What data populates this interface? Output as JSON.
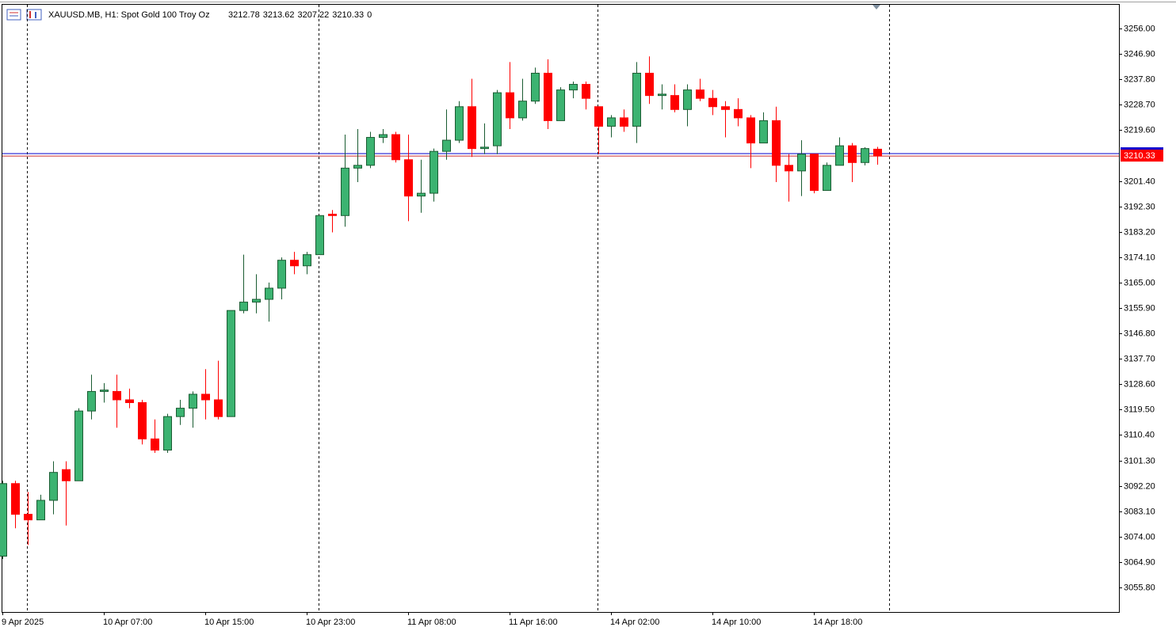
{
  "chart_data": {
    "type": "candlestick",
    "title": "XAUUSD.MB, H1:  Spot Gold 100 Troy Oz",
    "volume": 0,
    "categories": [
      "9 Apr 2025",
      null,
      null,
      null,
      null,
      null,
      null,
      null,
      "10 Apr 07:00",
      null,
      null,
      null,
      null,
      null,
      null,
      null,
      "10 Apr 15:00",
      null,
      null,
      null,
      null,
      null,
      null,
      null,
      "10 Apr 23:00",
      null,
      null,
      null,
      null,
      null,
      null,
      null,
      "11 Apr 08:00",
      null,
      null,
      null,
      null,
      null,
      null,
      null,
      "11 Apr 16:00",
      null,
      null,
      null,
      null,
      null,
      null,
      null,
      "14 Apr 02:00",
      null,
      null,
      null,
      null,
      null,
      null,
      null,
      "14 Apr 10:00",
      null,
      null,
      null,
      null,
      null,
      null,
      null,
      "14 Apr 18:00",
      null,
      null,
      null,
      null,
      null
    ],
    "open": [
      3067,
      3093,
      3082,
      3080,
      3087,
      3098,
      3094,
      3119,
      3126,
      3126,
      3123,
      3122,
      3109,
      3105,
      3117,
      3120,
      3125,
      3123,
      3117,
      3155,
      3158,
      3159,
      3163,
      3173,
      3171,
      3175,
      3189.5,
      3189,
      3206,
      3207,
      3217,
      3218,
      3209,
      3196,
      3197,
      3212,
      3216,
      3228,
      3213,
      3214,
      3233,
      3224,
      3230,
      3240,
      3223,
      3234,
      3236,
      3228,
      3221,
      3224,
      3221,
      3240,
      3232,
      3232,
      3227,
      3234,
      3231,
      3228,
      3227,
      3224,
      3215,
      3223,
      3207,
      3205,
      3211,
      3198,
      3207,
      3214,
      3208,
      3212.78
    ],
    "high": [
      3094,
      3094,
      3090,
      3089,
      3101,
      3101,
      3120,
      3132,
      3129,
      3132,
      3127,
      3123,
      3116,
      3118,
      3123,
      3126,
      3134,
      3137,
      3155,
      3175,
      3168,
      3165,
      3174,
      3176,
      3176,
      3189,
      3191,
      3218,
      3220,
      3219,
      3220,
      3219,
      3218,
      3209,
      3213,
      3227,
      3230,
      3238,
      3222,
      3234,
      3244,
      3238,
      3242,
      3245,
      3235,
      3237,
      3237,
      3228,
      3225,
      3227,
      3244,
      3246,
      3236,
      3236,
      3236,
      3238,
      3234,
      3230,
      3231,
      3225,
      3226,
      3228,
      3211,
      3216,
      3211,
      3208,
      3217,
      3215,
      3213.5,
      3213.62
    ],
    "low": [
      3066,
      3077,
      3071,
      3080,
      3082,
      3078,
      3094,
      3116,
      3122,
      3113,
      3120,
      3107,
      3104,
      3104,
      3114,
      3113,
      3116,
      3116,
      3117,
      3154,
      3154,
      3151,
      3159,
      3168,
      3168,
      3176,
      3183,
      3185,
      3201,
      3206,
      3215,
      3208,
      3187,
      3190,
      3194,
      3209,
      3215,
      3210,
      3211,
      3211,
      3220,
      3223,
      3229,
      3220,
      3223,
      3231,
      3227,
      3211,
      3217,
      3219,
      3215,
      3229,
      3227,
      3226,
      3221,
      3230,
      3225,
      3217,
      3221,
      3206,
      3215,
      3201,
      3194,
      3196,
      3197,
      3198,
      3207,
      3201,
      3207,
      3207.22
    ],
    "close": [
      3093,
      3082,
      3080,
      3087,
      3097,
      3094,
      3119,
      3126,
      3126.5,
      3123,
      3122,
      3109,
      3105,
      3117,
      3120,
      3125,
      3123,
      3117,
      3155,
      3158,
      3159,
      3163,
      3173,
      3171,
      3175,
      3189,
      3189,
      3206,
      3207,
      3217,
      3218,
      3209,
      3196,
      3197,
      3212,
      3216,
      3228,
      3213,
      3213.5,
      3233,
      3224,
      3230,
      3240,
      3223,
      3234,
      3236,
      3231,
      3221,
      3224,
      3221,
      3240,
      3232,
      3232.5,
      3227,
      3234,
      3231,
      3228,
      3227,
      3224,
      3215,
      3223,
      3207,
      3205,
      3211,
      3198,
      3207,
      3214,
      3208,
      3213,
      3210.33
    ],
    "ask": 3211.2,
    "up_color": "#3cb371",
    "down_color": "#ff0000",
    "ask_color": "#0000cc",
    "bid_color": "#cc3333",
    "ylim": [
      3047.0,
      3264.8
    ],
    "yticks": [
      {
        "value": 3055.8,
        "label": "3055.80"
      },
      {
        "value": 3064.9,
        "label": "3064.90"
      },
      {
        "value": 3074,
        "label": "3074.00"
      },
      {
        "value": 3083.1,
        "label": "3083.10"
      },
      {
        "value": 3092.2,
        "label": "3092.20"
      },
      {
        "value": 3101.3,
        "label": "3101.30"
      },
      {
        "value": 3110.4,
        "label": "3110.40"
      },
      {
        "value": 3119.5,
        "label": "3119.50"
      },
      {
        "value": 3128.6,
        "label": "3128.60"
      },
      {
        "value": 3137.7,
        "label": "3137.70"
      },
      {
        "value": 3146.8,
        "label": "3146.80"
      },
      {
        "value": 3155.9,
        "label": "3155.90"
      },
      {
        "value": 3165,
        "label": "3165.00"
      },
      {
        "value": 3174.1,
        "label": "3174.10"
      },
      {
        "value": 3183.2,
        "label": "3183.20"
      },
      {
        "value": 3192.3,
        "label": "3192.30"
      },
      {
        "value": 3201.4,
        "label": "3201.40"
      },
      {
        "value": 3219.6,
        "label": "3219.60"
      },
      {
        "value": 3228.7,
        "label": "3228.70"
      },
      {
        "value": 3237.8,
        "label": "3237.80"
      },
      {
        "value": 3246.9,
        "label": "3246.90"
      },
      {
        "value": 3256,
        "label": "3256.00"
      }
    ]
  }
}
